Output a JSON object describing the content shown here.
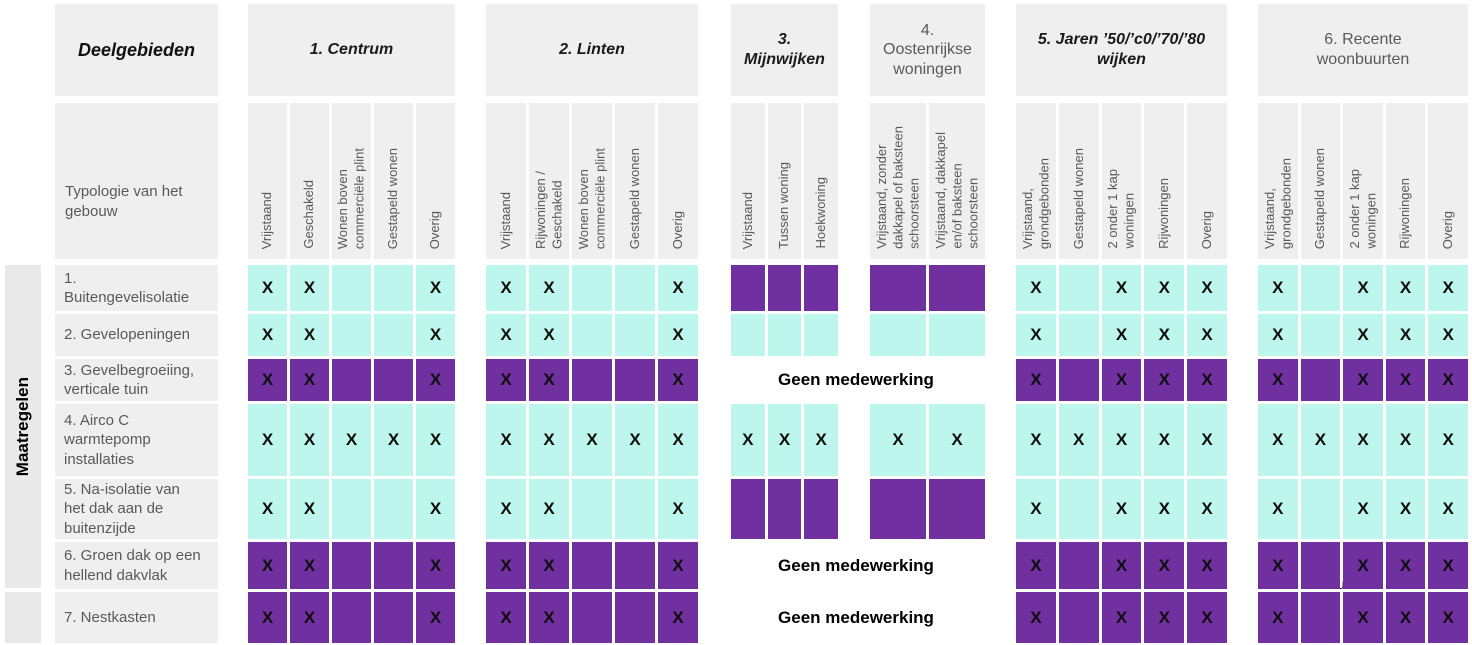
{
  "header": {
    "deelgebieden": "Deelgebieden",
    "typologie": "Typologie van het gebouw",
    "maatregelen": "Maatregelen"
  },
  "notes": {
    "geen_medewerking": "Geen medewerking",
    "stray_text": "u"
  },
  "colors": {
    "teal": "#bdf6ec",
    "purple": "#7030a0",
    "header_bg": "#efefef",
    "bar_bg": "#e9e9e9",
    "text_gray": "#595959",
    "text_dark": "#1a1a1a"
  },
  "groups": [
    {
      "id": "g1",
      "label": "1. Centrum",
      "style": "italic",
      "columns": [
        "Vrijstaand",
        "Geschakeld",
        "Wonen boven\ncommerciële plint",
        "Gestapeld wonen",
        "Overig"
      ]
    },
    {
      "id": "g2",
      "label": "2. Linten",
      "style": "italic",
      "columns": [
        "Vrijstaand",
        "Rijwoningen /\nGeschakeld",
        "Wonen boven\ncommerciële plint",
        "Gestapeld wonen",
        "Overig"
      ]
    },
    {
      "id": "g3",
      "label": "3.\nMijnwijken",
      "style": "italic",
      "columns": [
        "Vrijstaand",
        "Tussen woning",
        "Hoekwoning"
      ]
    },
    {
      "id": "g4",
      "label": "4.\nOostenrijkse\nwoningen",
      "style": "plain",
      "columns": [
        "Vrijstaand, zonder\ndakkapel of baksteen\nschoorsteen",
        "Vrijstaand, dakkapel\nen/of baksteen\nschoorsteen"
      ]
    },
    {
      "id": "g5",
      "label": "5. Jaren ’50/’c0/’70/’80\nwijken",
      "style": "italic",
      "columns": [
        "Vrijstaand,\ngrondgebonden",
        "Gestapeld wonen",
        "2 onder 1 kap\nwoningen",
        "Rijwoningen",
        "Overig"
      ]
    },
    {
      "id": "g6",
      "label": "6. Recente\nwoonbuurten",
      "style": "plain",
      "columns": [
        "Vrijstaand,\ngrondgebonden",
        "Gestapeld wonen",
        "2 onder 1 kap\nwoningen",
        "Rijwoningen",
        "Overig"
      ]
    }
  ],
  "rows": [
    {
      "label": "1.\nBuitengevelisolatie",
      "no_cooperation": false,
      "cells": [
        {
          "bg": "teal",
          "marks": [
            "X",
            "X",
            "",
            "",
            "X"
          ]
        },
        {
          "bg": "teal",
          "marks": [
            "X",
            "X",
            "",
            "",
            "X"
          ]
        },
        {
          "bg": "purple",
          "marks": [
            "",
            "",
            ""
          ]
        },
        {
          "bg": "purple",
          "marks": [
            "",
            ""
          ]
        },
        {
          "bg": "teal",
          "marks": [
            "X",
            "",
            "X",
            "X",
            "X"
          ]
        },
        {
          "bg": "teal",
          "marks": [
            "X",
            "",
            "X",
            "X",
            "X"
          ]
        }
      ]
    },
    {
      "label": "2. Gevelopeningen",
      "no_cooperation": false,
      "cells": [
        {
          "bg": "teal",
          "marks": [
            "X",
            "X",
            "",
            "",
            "X"
          ]
        },
        {
          "bg": "teal",
          "marks": [
            "X",
            "X",
            "",
            "",
            "X"
          ]
        },
        {
          "bg": "teal",
          "marks": [
            "",
            "",
            ""
          ]
        },
        {
          "bg": "teal",
          "marks": [
            "",
            ""
          ]
        },
        {
          "bg": "teal",
          "marks": [
            "X",
            "",
            "X",
            "X",
            "X"
          ]
        },
        {
          "bg": "teal",
          "marks": [
            "X",
            "",
            "X",
            "X",
            "X"
          ]
        }
      ]
    },
    {
      "label": "3. Gevelbegroeiing,\nverticale tuin",
      "no_cooperation": true,
      "cells": [
        {
          "bg": "purple",
          "marks": [
            "X",
            "X",
            "",
            "",
            "X"
          ]
        },
        {
          "bg": "purple",
          "marks": [
            "X",
            "X",
            "",
            "",
            "X"
          ]
        },
        null,
        null,
        {
          "bg": "purple",
          "marks": [
            "X",
            "",
            "X",
            "X",
            "X"
          ]
        },
        {
          "bg": "purple",
          "marks": [
            "X",
            "",
            "X",
            "X",
            "X"
          ]
        }
      ]
    },
    {
      "label": "4. Airco C\nwarmtepomp\n    installaties",
      "no_cooperation": false,
      "cells": [
        {
          "bg": "teal",
          "marks": [
            "X",
            "X",
            "X",
            "X",
            "X"
          ]
        },
        {
          "bg": "teal",
          "marks": [
            "X",
            "X",
            "X",
            "X",
            "X"
          ]
        },
        {
          "bg": "teal",
          "marks": [
            "X",
            "X",
            "X"
          ]
        },
        {
          "bg": "teal",
          "marks": [
            "X",
            "X"
          ]
        },
        {
          "bg": "teal",
          "marks": [
            "X",
            "X",
            "X",
            "X",
            "X"
          ]
        },
        {
          "bg": "teal",
          "marks": [
            "X",
            "X",
            "X",
            "X",
            "X"
          ]
        }
      ]
    },
    {
      "label": "5. Na-isolatie van\nhet dak aan de\nbuitenzijde",
      "no_cooperation": false,
      "cells": [
        {
          "bg": "teal",
          "marks": [
            "X",
            "X",
            "",
            "",
            "X"
          ]
        },
        {
          "bg": "teal",
          "marks": [
            "X",
            "X",
            "",
            "",
            "X"
          ]
        },
        {
          "bg": "purple",
          "marks": [
            "",
            "",
            ""
          ]
        },
        {
          "bg": "purple",
          "marks": [
            "",
            ""
          ]
        },
        {
          "bg": "teal",
          "marks": [
            "X",
            "",
            "X",
            "X",
            "X"
          ]
        },
        {
          "bg": "teal",
          "marks": [
            "X",
            "",
            "X",
            "X",
            "X"
          ]
        }
      ]
    },
    {
      "label": "6. Groen dak op een\nhellend dakvlak",
      "no_cooperation": true,
      "cells": [
        {
          "bg": "purple",
          "marks": [
            "X",
            "X",
            "",
            "",
            "X"
          ]
        },
        {
          "bg": "purple",
          "marks": [
            "X",
            "X",
            "",
            "",
            "X"
          ]
        },
        null,
        null,
        {
          "bg": "purple",
          "marks": [
            "X",
            "",
            "X",
            "X",
            "X"
          ]
        },
        {
          "bg": "purple",
          "marks": [
            "X",
            "",
            "X",
            "X",
            "X"
          ]
        }
      ]
    },
    {
      "label": "7. Nestkasten",
      "no_cooperation": true,
      "cells": [
        {
          "bg": "purple",
          "marks": [
            "X",
            "X",
            "",
            "",
            "X"
          ]
        },
        {
          "bg": "purple",
          "marks": [
            "X",
            "X",
            "",
            "",
            "X"
          ]
        },
        null,
        null,
        {
          "bg": "purple",
          "marks": [
            "X",
            "",
            "X",
            "X",
            "X"
          ]
        },
        {
          "bg": "purple",
          "marks": [
            "X",
            "",
            "X",
            "X",
            "X"
          ]
        }
      ]
    }
  ]
}
